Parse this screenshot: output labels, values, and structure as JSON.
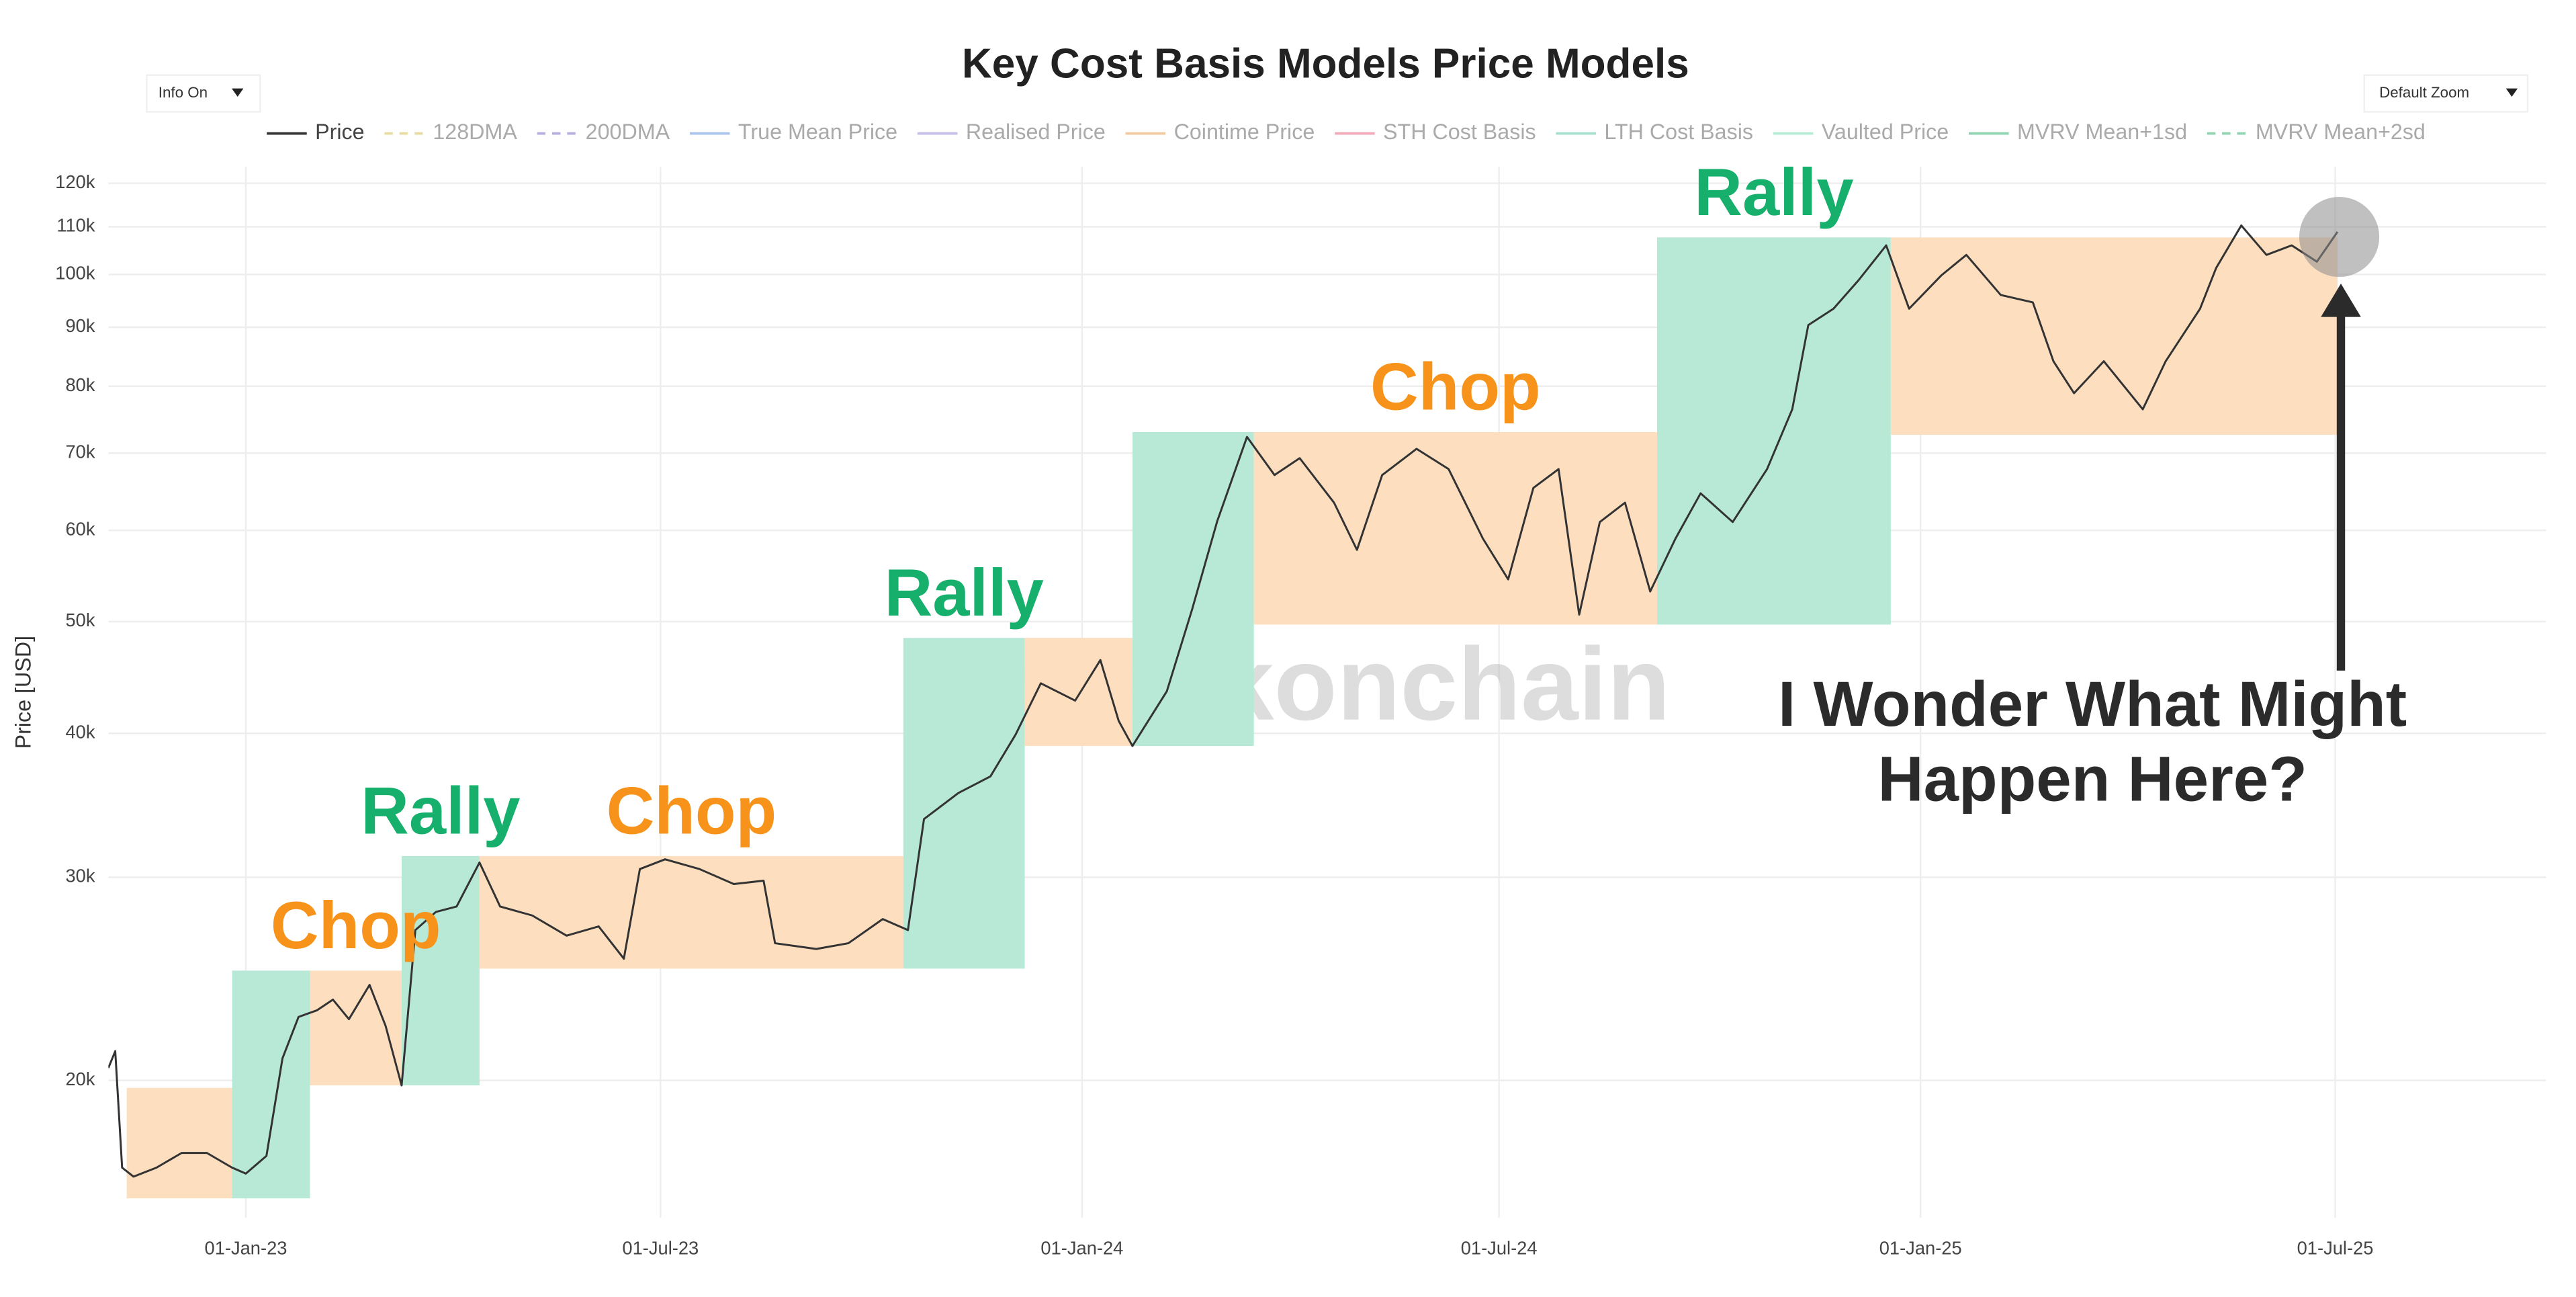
{
  "chart_data": {
    "type": "line",
    "title": "Key Cost Basis Models Price Models",
    "ui": {
      "left_dropdown": "Info On",
      "right_dropdown": "Default Zoom"
    },
    "y_label": "Price [USD]",
    "watermark": "checkonchain",
    "log_y": true,
    "grid": true,
    "xlim": [
      "2022-11-02",
      "2025-10-01"
    ],
    "xticks": [
      {
        "value": "2023-01-01",
        "label": "01-Jan-23"
      },
      {
        "value": "2023-07-01",
        "label": "01-Jul-23"
      },
      {
        "value": "2024-01-01",
        "label": "01-Jan-24"
      },
      {
        "value": "2024-07-01",
        "label": "01-Jul-24"
      },
      {
        "value": "2025-01-01",
        "label": "01-Jan-25"
      },
      {
        "value": "2025-07-01",
        "label": "01-Jul-25"
      }
    ],
    "ylim": [
      15200,
      124000
    ],
    "yticks": [
      {
        "value": 20000,
        "label": "20k"
      },
      {
        "value": 30000,
        "label": "30k"
      },
      {
        "value": 40000,
        "label": "40k"
      },
      {
        "value": 50000,
        "label": "50k"
      },
      {
        "value": 60000,
        "label": "60k"
      },
      {
        "value": 70000,
        "label": "70k"
      },
      {
        "value": 80000,
        "label": "80k"
      },
      {
        "value": 90000,
        "label": "90k"
      },
      {
        "value": 100000,
        "label": "100k"
      },
      {
        "value": 110000,
        "label": "110k"
      },
      {
        "value": 120000,
        "label": "120k"
      }
    ],
    "x": [
      "2022-11-02",
      "2022-11-05",
      "2022-11-08",
      "2022-11-13",
      "2022-11-23",
      "2022-12-04",
      "2022-12-15",
      "2022-12-26",
      "2023-01-01",
      "2023-01-10",
      "2023-01-17",
      "2023-01-24",
      "2023-02-01",
      "2023-02-08",
      "2023-02-15",
      "2023-02-24",
      "2023-03-03",
      "2023-03-10",
      "2023-03-16",
      "2023-03-25",
      "2023-04-03",
      "2023-04-13",
      "2023-04-22",
      "2023-05-06",
      "2023-05-21",
      "2023-06-04",
      "2023-06-15",
      "2023-06-22",
      "2023-07-03",
      "2023-07-18",
      "2023-08-02",
      "2023-08-15",
      "2023-08-20",
      "2023-09-07",
      "2023-09-21",
      "2023-10-06",
      "2023-10-17",
      "2023-10-24",
      "2023-11-08",
      "2023-11-22",
      "2023-12-03",
      "2023-12-14",
      "2023-12-29",
      "2024-01-09",
      "2024-01-17",
      "2024-01-23",
      "2024-02-07",
      "2024-02-18",
      "2024-02-29",
      "2024-03-13",
      "2024-03-25",
      "2024-04-05",
      "2024-04-20",
      "2024-04-30",
      "2024-05-11",
      "2024-05-26",
      "2024-06-09",
      "2024-06-24",
      "2024-07-05",
      "2024-07-16",
      "2024-07-27",
      "2024-08-05",
      "2024-08-14",
      "2024-08-25",
      "2024-09-05",
      "2024-09-16",
      "2024-09-27",
      "2024-10-11",
      "2024-10-26",
      "2024-11-06",
      "2024-11-13",
      "2024-11-24",
      "2024-12-05",
      "2024-12-17",
      "2024-12-27",
      "2025-01-10",
      "2025-01-21",
      "2025-02-05",
      "2025-02-19",
      "2025-02-28",
      "2025-03-09",
      "2025-03-22",
      "2025-04-08",
      "2025-04-18",
      "2025-05-03",
      "2025-05-10",
      "2025-05-21",
      "2025-06-01",
      "2025-06-12",
      "2025-06-23",
      "2025-07-02"
    ],
    "series": [
      {
        "name": "Price",
        "color": "#333333",
        "values": [
          20500,
          21200,
          16800,
          16500,
          16800,
          17300,
          17300,
          16800,
          16600,
          17200,
          20900,
          22700,
          23000,
          23500,
          22600,
          24200,
          22300,
          19800,
          27000,
          28000,
          28300,
          30900,
          28300,
          27800,
          26700,
          27200,
          25500,
          30500,
          31100,
          30500,
          29600,
          29800,
          26300,
          26000,
          26300,
          27600,
          27000,
          33700,
          35500,
          36700,
          39900,
          44200,
          42700,
          46300,
          41000,
          39000,
          43500,
          51200,
          61100,
          72300,
          67000,
          69300,
          63400,
          57700,
          67000,
          70600,
          67800,
          59000,
          54400,
          65300,
          67800,
          50700,
          61000,
          63400,
          53100,
          59000,
          64600,
          61000,
          67800,
          76400,
          90400,
          93400,
          98900,
          106000,
          93400,
          99800,
          104000,
          96000,
          94600,
          84100,
          78900,
          84100,
          76400,
          84100,
          93400,
          101300,
          110300,
          104000,
          106000,
          102600,
          108900
        ]
      }
    ],
    "inactive_legend": [
      {
        "name": "128DMA",
        "color": "#e8dca0",
        "dash": true
      },
      {
        "name": "200DMA",
        "color": "#b7aee0",
        "dash": true
      },
      {
        "name": "True Mean Price",
        "color": "#a9c4ee",
        "dash": false
      },
      {
        "name": "Realised Price",
        "color": "#c6bde8",
        "dash": false
      },
      {
        "name": "Cointime Price",
        "color": "#f3c9a0",
        "dash": false
      },
      {
        "name": "STH Cost Basis",
        "color": "#f2a9b8",
        "dash": false
      },
      {
        "name": "LTH Cost Basis",
        "color": "#a6e0cf",
        "dash": false
      },
      {
        "name": "Vaulted Price",
        "color": "#b4ecd6",
        "dash": false
      },
      {
        "name": "MVRV Mean+1sd",
        "color": "#8fd3b0",
        "dash": false
      },
      {
        "name": "MVRV Mean+2sd",
        "color": "#8fd3b0",
        "dash": true
      }
    ],
    "zones": [
      {
        "x": [
          "2022-11-10",
          "2022-12-26"
        ],
        "y": [
          15800,
          19700
        ],
        "color": "#fddfc0"
      },
      {
        "x": [
          "2022-12-26",
          "2023-01-29"
        ],
        "y": [
          15800,
          24900
        ],
        "color": "#b7e9d6"
      },
      {
        "x": [
          "2023-01-29",
          "2023-03-10"
        ],
        "y": [
          19800,
          24900
        ],
        "color": "#fddfc0",
        "label": "Chop",
        "label_color": "#f7931a"
      },
      {
        "x": [
          "2023-03-10",
          "2023-04-13"
        ],
        "y": [
          19800,
          31300
        ],
        "color": "#b7e9d6",
        "label": "Rally",
        "label_color": "#16b06c"
      },
      {
        "x": [
          "2023-04-13",
          "2023-10-15"
        ],
        "y": [
          25000,
          31300
        ],
        "color": "#fddfc0",
        "label": "Chop",
        "label_color": "#f7931a"
      },
      {
        "x": [
          "2023-10-15",
          "2023-12-07"
        ],
        "y": [
          25000,
          48400
        ],
        "color": "#b7e9d6",
        "label": "Rally",
        "label_color": "#16b06c"
      },
      {
        "x": [
          "2023-12-07",
          "2024-01-23"
        ],
        "y": [
          39000,
          48400
        ],
        "color": "#fddfc0"
      },
      {
        "x": [
          "2024-01-23",
          "2024-03-16"
        ],
        "y": [
          39000,
          73000
        ],
        "color": "#b7e9d6"
      },
      {
        "x": [
          "2024-03-16",
          "2024-09-08"
        ],
        "y": [
          49700,
          73000
        ],
        "color": "#fddfc0",
        "label": "Chop",
        "label_color": "#f7931a"
      },
      {
        "x": [
          "2024-09-08",
          "2024-12-19"
        ],
        "y": [
          49700,
          107700
        ],
        "color": "#b7e9d6",
        "label": "Rally",
        "label_color": "#16b06c"
      },
      {
        "x": [
          "2024-12-19",
          "2025-07-02"
        ],
        "y": [
          72600,
          107700
        ],
        "color": "#fddfc0"
      }
    ],
    "annotation": [
      "I Wonder What Might",
      "Happen Here?"
    ]
  }
}
